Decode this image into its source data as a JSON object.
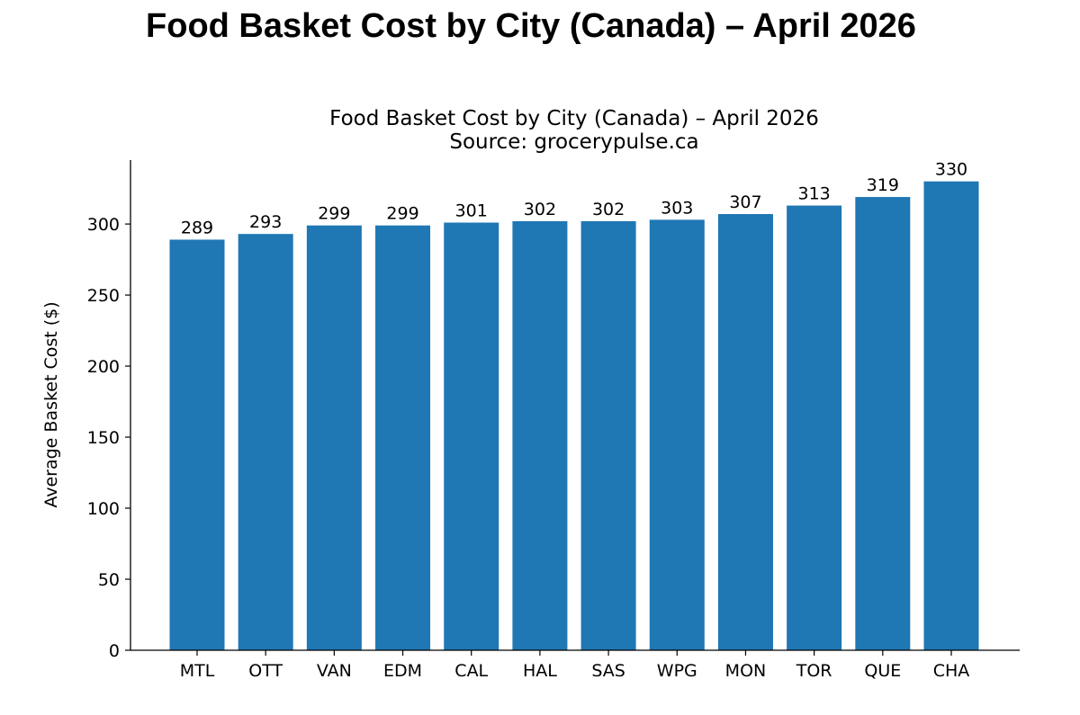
{
  "page": {
    "title": "Food Basket Cost by City (Canada) – April 2026"
  },
  "chart_data": {
    "type": "bar",
    "title": "Food Basket Cost by City (Canada) – April 2026",
    "subtitle": "Source: grocerypulse.ca",
    "xlabel": "",
    "ylabel": "Average Basket Cost ($)",
    "categories": [
      "MTL",
      "OTT",
      "VAN",
      "EDM",
      "CAL",
      "HAL",
      "SAS",
      "WPG",
      "MON",
      "TOR",
      "QUE",
      "CHA"
    ],
    "values": [
      289,
      293,
      299,
      299,
      301,
      302,
      302,
      303,
      307,
      313,
      319,
      330
    ],
    "data_labels": [
      "289",
      "293",
      "299",
      "299",
      "301",
      "302",
      "302",
      "303",
      "307",
      "313",
      "319",
      "330"
    ],
    "ylim": [
      0,
      345
    ],
    "yticks": [
      0,
      50,
      100,
      150,
      200,
      250,
      300
    ],
    "ytick_labels": [
      "0",
      "50",
      "100",
      "150",
      "200",
      "250",
      "300"
    ],
    "grid": false,
    "bar_color": "#1f77b4"
  }
}
